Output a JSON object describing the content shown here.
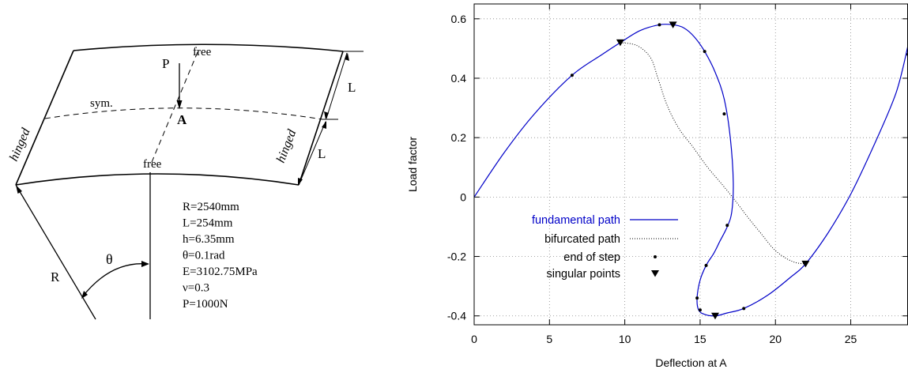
{
  "diagram": {
    "labels": {
      "load": "P",
      "free_top": "free",
      "free_bottom": "free",
      "sym": "sym.",
      "point": "A",
      "hinged_left": "hinged",
      "hinged_right": "hinged",
      "length_top": "L",
      "length_bottom": "L",
      "radius": "R",
      "angle": "θ"
    },
    "parameters": [
      "R=2540mm",
      "L=254mm",
      "h=6.35mm",
      "θ=0.1rad",
      "E=3102.75MPa",
      "ν=0.3",
      "P=1000N"
    ]
  },
  "chart_data": {
    "type": "line",
    "xlabel": "Deflection at A",
    "ylabel": "Load factor",
    "xlim": [
      0,
      28.8
    ],
    "ylim": [
      -0.43,
      0.65
    ],
    "xticks": [
      0,
      5,
      10,
      15,
      20,
      25
    ],
    "yticks": [
      -0.4,
      -0.2,
      0,
      0.2,
      0.4,
      0.6
    ],
    "xtick_labels": [
      "0",
      "5",
      "10",
      "15",
      "20",
      "25"
    ],
    "ytick_labels": [
      "-0.4",
      "-0.2",
      "0",
      "0.2",
      "0.4",
      "0.6"
    ],
    "grid": true,
    "legend_position": "lower-left",
    "colors": {
      "fundamental": "#0000c8",
      "bifurcated": "#000000",
      "markers": "#000000"
    },
    "series": [
      {
        "name": "fundamental path",
        "style": "solid",
        "x": [
          0,
          2,
          4,
          6.5,
          8.5,
          9.7,
          11,
          12.3,
          13.2,
          13.9,
          14.6,
          15.3,
          16,
          16.6,
          17,
          17.2,
          17.1,
          16.8,
          16.3,
          15.9,
          15.4,
          15,
          14.8,
          14.9,
          15.3,
          16,
          16.8,
          17.9,
          19.5,
          21,
          22,
          23.5,
          25,
          26.5,
          28,
          28.8
        ],
        "y": [
          0,
          0.15,
          0.28,
          0.41,
          0.48,
          0.52,
          0.56,
          0.58,
          0.58,
          0.57,
          0.54,
          0.49,
          0.42,
          0.33,
          0.2,
          0.05,
          -0.05,
          -0.1,
          -0.15,
          -0.19,
          -0.23,
          -0.28,
          -0.34,
          -0.38,
          -0.395,
          -0.4,
          -0.39,
          -0.375,
          -0.33,
          -0.27,
          -0.225,
          -0.12,
          0.01,
          0.17,
          0.35,
          0.51
        ]
      },
      {
        "name": "bifurcated path",
        "style": "dotted",
        "x": [
          9.7,
          10.8,
          11.7,
          12.2,
          12.8,
          13.6,
          14.5,
          15.5,
          16.5,
          17.3,
          18.2,
          19.0,
          19.8,
          20.5,
          21.3,
          22.0
        ],
        "y": [
          0.52,
          0.51,
          0.47,
          0.4,
          0.31,
          0.23,
          0.17,
          0.1,
          0.04,
          -0.01,
          -0.07,
          -0.12,
          -0.17,
          -0.2,
          -0.22,
          -0.225
        ]
      },
      {
        "name": "end of step",
        "style": "dot-markers",
        "x": [
          6.5,
          12.3,
          15.3,
          16.6,
          16.8,
          15.4,
          14.8,
          15.0,
          17.9,
          28.8
        ],
        "y": [
          0.41,
          0.58,
          0.49,
          0.28,
          -0.095,
          -0.23,
          -0.34,
          -0.38,
          -0.375,
          0.48
        ]
      },
      {
        "name": "singular points",
        "style": "triangle-markers",
        "x": [
          9.7,
          13.2,
          16.0,
          22.0
        ],
        "y": [
          0.52,
          0.58,
          -0.4,
          -0.225
        ]
      }
    ]
  }
}
